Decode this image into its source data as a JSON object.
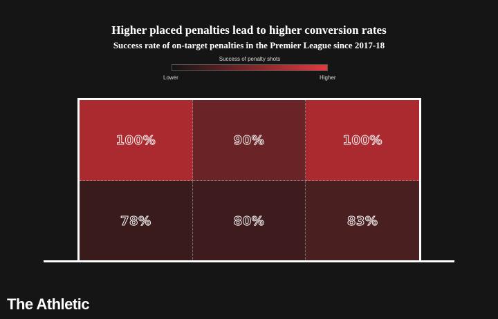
{
  "chart_data": {
    "type": "heatmap",
    "title": "Higher placed penalties lead to higher conversion rates",
    "subtitle": "Success rate of on-target penalties in the Premier League since 2017-18",
    "legend": {
      "title": "Success of penalty shots",
      "low_label": "Lower",
      "high_label": "Higher",
      "low_color": "#151515",
      "high_color": "#e03a3e"
    },
    "rows": 2,
    "cols": 3,
    "cells": [
      {
        "row": 0,
        "col": 0,
        "value": 100,
        "label": "100%"
      },
      {
        "row": 0,
        "col": 1,
        "value": 90,
        "label": "90%"
      },
      {
        "row": 0,
        "col": 2,
        "value": 100,
        "label": "100%"
      },
      {
        "row": 1,
        "col": 0,
        "value": 78,
        "label": "78%"
      },
      {
        "row": 1,
        "col": 1,
        "value": 80,
        "label": "80%"
      },
      {
        "row": 1,
        "col": 2,
        "value": 83,
        "label": "83%"
      }
    ]
  },
  "brand": "The Athletic",
  "colors": {
    "background": "#151515",
    "cell_100": "#ab2a2f",
    "cell_90": "#6a2326",
    "cell_83": "#4a1f20",
    "cell_80": "#3e1c1d",
    "cell_78": "#391b1c"
  }
}
